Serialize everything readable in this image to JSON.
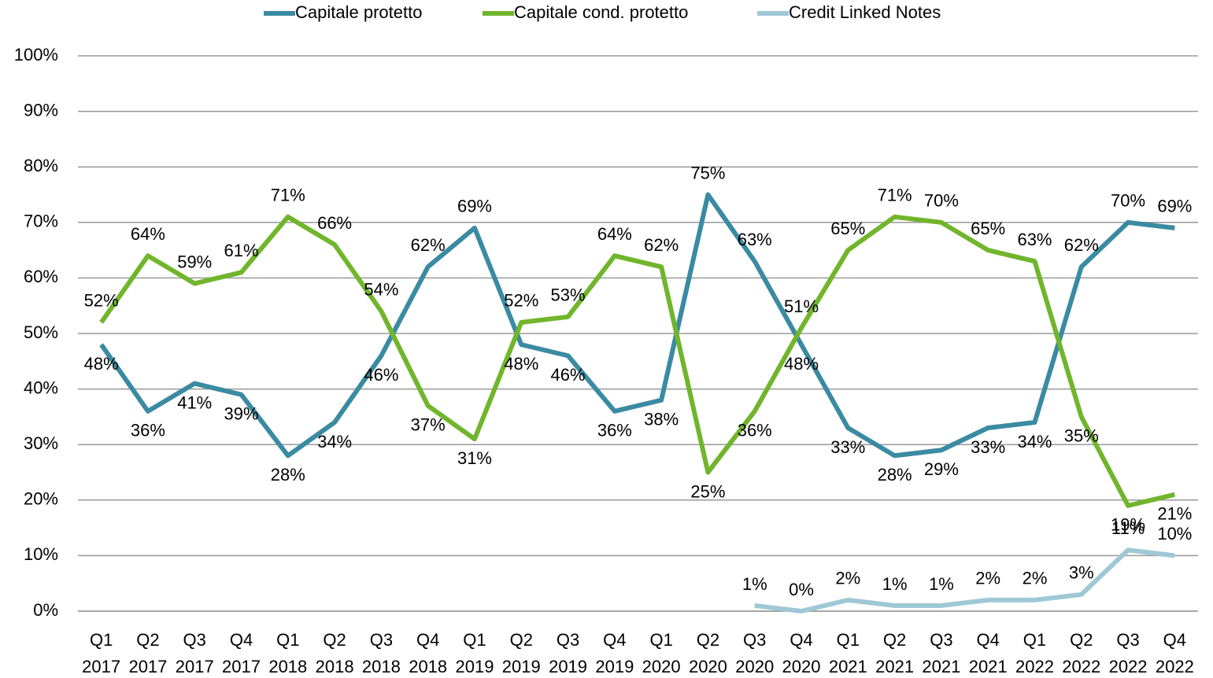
{
  "chart_data": {
    "type": "line",
    "categories": [
      "Q1 2017",
      "Q2 2017",
      "Q3 2017",
      "Q4 2017",
      "Q1 2018",
      "Q2 2018",
      "Q3 2018",
      "Q4 2018",
      "Q1 2019",
      "Q2 2019",
      "Q3 2019",
      "Q4 2019",
      "Q1 2020",
      "Q2 2020",
      "Q3 2020",
      "Q4 2020",
      "Q1 2021",
      "Q2 2021",
      "Q3 2021",
      "Q4 2021",
      "Q1 2022",
      "Q2 2022",
      "Q3 2022",
      "Q4 2022"
    ],
    "series": [
      {
        "name": "Capitale protetto",
        "color": "#3a8ba2",
        "values": [
          48,
          36,
          41,
          39,
          28,
          34,
          46,
          62,
          69,
          48,
          46,
          36,
          38,
          75,
          63,
          48,
          33,
          28,
          29,
          33,
          34,
          62,
          70,
          69
        ],
        "value_labels": [
          "48%",
          "36%",
          "41%",
          "39%",
          "28%",
          "34%",
          "46%",
          "62%",
          "69%",
          "48%",
          "46%",
          "36%",
          "38%",
          "75%",
          "63%",
          "48%",
          "33%",
          "28%",
          "29%",
          "33%",
          "34%",
          "62%",
          "70%",
          "69%"
        ]
      },
      {
        "name": "Capitale cond. protetto",
        "color": "#70b52c",
        "values": [
          52,
          64,
          59,
          61,
          71,
          66,
          54,
          37,
          31,
          52,
          53,
          64,
          62,
          25,
          36,
          51,
          65,
          71,
          70,
          65,
          63,
          35,
          19,
          21
        ],
        "value_labels": [
          "52%",
          "64%",
          "59%",
          "61%",
          "71%",
          "66%",
          "54%",
          "37%",
          "31%",
          "52%",
          "53%",
          "64%",
          "62%",
          "25%",
          "36%",
          "51%",
          "65%",
          "71%",
          "70%",
          "65%",
          "63%",
          "35%",
          "19%",
          "21%"
        ]
      },
      {
        "name": "Credit Linked Notes",
        "color": "#9fc8d5",
        "values": [
          null,
          null,
          null,
          null,
          null,
          null,
          null,
          null,
          null,
          null,
          null,
          null,
          null,
          null,
          1,
          0,
          2,
          1,
          1,
          2,
          2,
          3,
          11,
          10
        ],
        "value_labels": [
          null,
          null,
          null,
          null,
          null,
          null,
          null,
          null,
          null,
          null,
          null,
          null,
          null,
          null,
          "1%",
          "0%",
          "2%",
          "1%",
          "1%",
          "2%",
          "2%",
          "3%",
          "11%",
          "10%"
        ]
      }
    ],
    "ylim": [
      0,
      100
    ],
    "yticks": [
      {
        "value": 0,
        "label": "0%"
      },
      {
        "value": 10,
        "label": "10%"
      },
      {
        "value": 20,
        "label": "20%"
      },
      {
        "value": 30,
        "label": "30%"
      },
      {
        "value": 40,
        "label": "40%"
      },
      {
        "value": 50,
        "label": "50%"
      },
      {
        "value": 60,
        "label": "60%"
      },
      {
        "value": 70,
        "label": "70%"
      },
      {
        "value": 80,
        "label": "80%"
      },
      {
        "value": 90,
        "label": "90%"
      },
      {
        "value": 100,
        "label": "100%"
      }
    ],
    "grid": true,
    "legend": "top"
  }
}
